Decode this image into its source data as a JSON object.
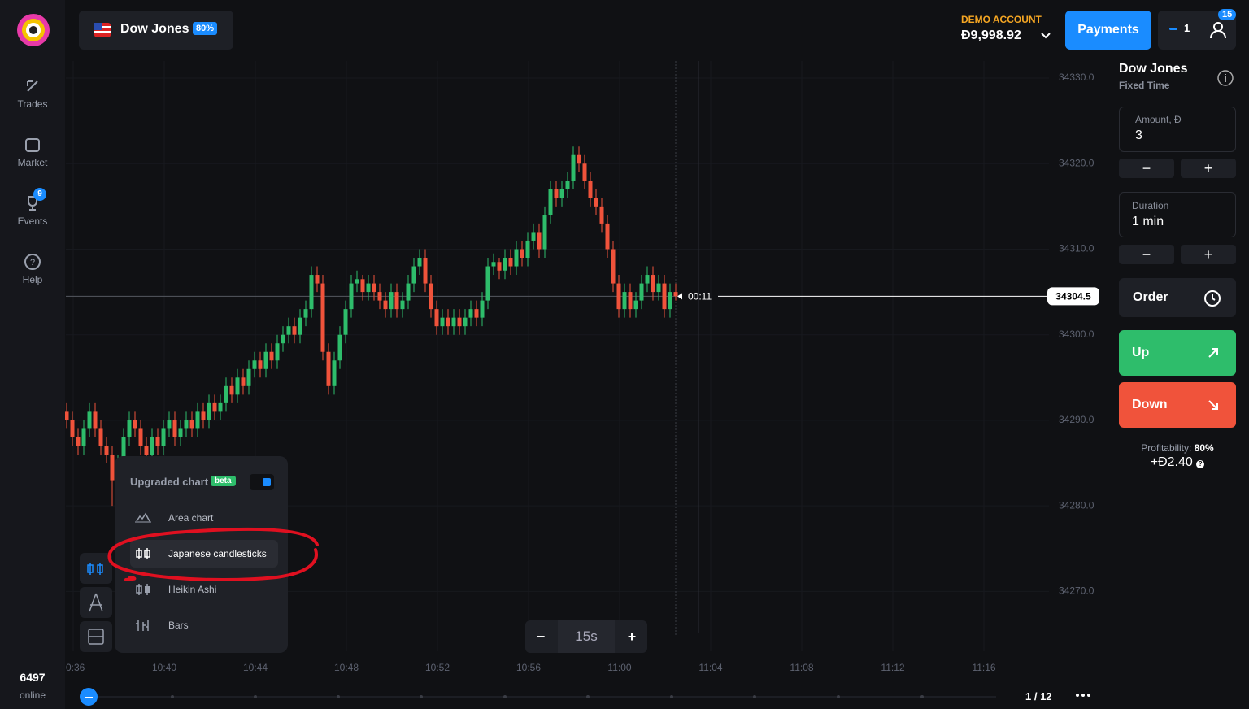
{
  "header": {
    "asset": "Dow Jones",
    "payout": "80%",
    "account_label": "DEMO ACCOUNT",
    "balance": "Đ9,998.92",
    "payments": "Payments",
    "trades_count": "1",
    "notifications": "15"
  },
  "sidebar": {
    "items": [
      {
        "label": "Trades"
      },
      {
        "label": "Market"
      },
      {
        "label": "Events",
        "badge": "9"
      },
      {
        "label": "Help"
      }
    ],
    "online_count": "6497",
    "online_label": "online"
  },
  "chart": {
    "type": "candlestick",
    "up_color": "#2ebd6b",
    "down_color": "#f0533b",
    "grid": true,
    "ylim": [
      34263,
      34332
    ],
    "yticks": [
      {
        "value": 34330,
        "label": "34330.0"
      },
      {
        "value": 34320,
        "label": "34320.0"
      },
      {
        "value": 34310,
        "label": "34310.0"
      },
      {
        "value": 34300,
        "label": "34300.0"
      },
      {
        "value": 34290,
        "label": "34290.0"
      },
      {
        "value": 34280,
        "label": "34280.0"
      },
      {
        "value": 34270,
        "label": "34270.0"
      }
    ],
    "x_labels": [
      "0:36",
      "10:40",
      "10:44",
      "10:48",
      "10:52",
      "10:56",
      "11:00",
      "11:04",
      "11:08",
      "11:12",
      "11:16"
    ],
    "current_price": 34304.5,
    "timer": "00:11",
    "candles": [
      [
        34291,
        34292,
        34289,
        34290
      ],
      [
        34290,
        34291,
        34287,
        34288
      ],
      [
        34288,
        34289,
        34286,
        34287
      ],
      [
        34287,
        34290,
        34286,
        34289
      ],
      [
        34289,
        34292,
        34288,
        34291
      ],
      [
        34291,
        34292,
        34288,
        34289
      ],
      [
        34289,
        34290,
        34286,
        34287
      ],
      [
        34287,
        34288,
        34285,
        34286
      ],
      [
        34286,
        34287,
        34280,
        34283
      ],
      [
        34283,
        34286,
        34282,
        34285
      ],
      [
        34285,
        34289,
        34284,
        34288
      ],
      [
        34288,
        34291,
        34287,
        34290
      ],
      [
        34290,
        34291,
        34288,
        34289
      ],
      [
        34289,
        34290,
        34286,
        34287
      ],
      [
        34287,
        34288,
        34285,
        34286
      ],
      [
        34286,
        34289,
        34285,
        34288
      ],
      [
        34288,
        34289,
        34286,
        34287
      ],
      [
        34287,
        34290,
        34286,
        34289
      ],
      [
        34289,
        34291,
        34288,
        34290
      ],
      [
        34290,
        34291,
        34287,
        34288
      ],
      [
        34288,
        34290,
        34287,
        34289
      ],
      [
        34289,
        34291,
        34288,
        34290
      ],
      [
        34290,
        34291,
        34288,
        34289
      ],
      [
        34289,
        34292,
        34288,
        34291
      ],
      [
        34291,
        34292,
        34289,
        34290
      ],
      [
        34290,
        34293,
        34289,
        34292
      ],
      [
        34292,
        34293,
        34290,
        34291
      ],
      [
        34291,
        34293,
        34290,
        34292
      ],
      [
        34292,
        34295,
        34291,
        34294
      ],
      [
        34294,
        34295,
        34292,
        34293
      ],
      [
        34293,
        34296,
        34292,
        34295
      ],
      [
        34295,
        34296,
        34293,
        34294
      ],
      [
        34294,
        34297,
        34293,
        34296
      ],
      [
        34296,
        34298,
        34295,
        34297
      ],
      [
        34297,
        34298,
        34295,
        34296
      ],
      [
        34296,
        34299,
        34295,
        34298
      ],
      [
        34298,
        34299,
        34296,
        34297
      ],
      [
        34297,
        34300,
        34296,
        34299
      ],
      [
        34299,
        34301,
        34298,
        34300
      ],
      [
        34300,
        34302,
        34299,
        34301
      ],
      [
        34301,
        34302,
        34299,
        34300
      ],
      [
        34300,
        34303,
        34299,
        34302
      ],
      [
        34302,
        34304,
        34301,
        34303
      ],
      [
        34303,
        34308,
        34302,
        34307
      ],
      [
        34307,
        34308,
        34305,
        34306
      ],
      [
        34306,
        34307,
        34297,
        34298
      ],
      [
        34298,
        34299,
        34293,
        34294
      ],
      [
        34294,
        34298,
        34293,
        34297
      ],
      [
        34297,
        34301,
        34296,
        34300
      ],
      [
        34300,
        34304,
        34299,
        34303
      ],
      [
        34303,
        34307,
        34302,
        34306
      ],
      [
        34306,
        34307.5,
        34305,
        34306.5
      ],
      [
        34306.5,
        34307,
        34304,
        34305
      ],
      [
        34305,
        34307,
        34304,
        34306
      ],
      [
        34306,
        34307,
        34304,
        34305
      ],
      [
        34305,
        34306,
        34303,
        34304
      ],
      [
        34304,
        34305,
        34302,
        34303
      ],
      [
        34303,
        34306,
        34302,
        34305
      ],
      [
        34305,
        34306,
        34302,
        34303
      ],
      [
        34303,
        34305,
        34302,
        34304
      ],
      [
        34304,
        34307,
        34303,
        34306
      ],
      [
        34306,
        34309,
        34305,
        34308
      ],
      [
        34308,
        34310,
        34307,
        34309
      ],
      [
        34309,
        34310,
        34305,
        34306
      ],
      [
        34306,
        34307,
        34302,
        34303
      ],
      [
        34303,
        34304,
        34300,
        34301
      ],
      [
        34301,
        34303,
        34300,
        34302
      ],
      [
        34302,
        34303,
        34300,
        34301
      ],
      [
        34301,
        34303,
        34300,
        34302
      ],
      [
        34302,
        34303,
        34300,
        34301
      ],
      [
        34301,
        34303,
        34300,
        34302
      ],
      [
        34302,
        34304,
        34301,
        34303
      ],
      [
        34303,
        34304,
        34301,
        34302
      ],
      [
        34302,
        34305,
        34301,
        34304
      ],
      [
        34304,
        34309,
        34303,
        34308
      ],
      [
        34308,
        34309.5,
        34307,
        34308.5
      ],
      [
        34308.5,
        34309,
        34306.5,
        34307.5
      ],
      [
        34307.5,
        34310,
        34306.5,
        34309
      ],
      [
        34309,
        34310,
        34307,
        34308
      ],
      [
        34308,
        34311,
        34307,
        34310
      ],
      [
        34310,
        34311,
        34308,
        34309
      ],
      [
        34309,
        34312,
        34308,
        34311
      ],
      [
        34311,
        34313,
        34310,
        34312
      ],
      [
        34312,
        34313,
        34309,
        34310
      ],
      [
        34310,
        34315,
        34309,
        34314
      ],
      [
        34314,
        34318,
        34313,
        34317
      ],
      [
        34317,
        34318,
        34315,
        34316
      ],
      [
        34316,
        34318,
        34315,
        34317
      ],
      [
        34317,
        34319,
        34316,
        34318
      ],
      [
        34318,
        34322,
        34317,
        34321
      ],
      [
        34321,
        34322,
        34319,
        34320
      ],
      [
        34320,
        34321,
        34317,
        34318
      ],
      [
        34318,
        34319,
        34315,
        34316
      ],
      [
        34316,
        34317,
        34314,
        34315
      ],
      [
        34315,
        34316,
        34312,
        34313
      ],
      [
        34313,
        34314,
        34309,
        34310
      ],
      [
        34310,
        34311,
        34305,
        34306
      ],
      [
        34306,
        34307,
        34302,
        34303
      ],
      [
        34303,
        34306,
        34302,
        34305
      ],
      [
        34305,
        34306,
        34302,
        34303
      ],
      [
        34303,
        34305,
        34302,
        34304
      ],
      [
        34304,
        34307,
        34303,
        34306
      ],
      [
        34306,
        34308,
        34305,
        34307
      ],
      [
        34307,
        34308,
        34304,
        34305
      ],
      [
        34305,
        34307,
        34304,
        34306
      ],
      [
        34306,
        34307,
        34302,
        34303
      ],
      [
        34303,
        34306,
        34302,
        34305
      ],
      [
        34305,
        34306,
        34304,
        34304.5
      ]
    ]
  },
  "chart_menu": {
    "title": "Upgraded chart",
    "badge": "beta",
    "items": [
      "Area chart",
      "Japanese candlesticks",
      "Heikin Ashi",
      "Bars"
    ],
    "selected": 1
  },
  "zoom": {
    "minus": "−",
    "interval": "15s",
    "plus": "+"
  },
  "trade_panel": {
    "asset": "Dow Jones",
    "mode": "Fixed Time",
    "amount_label": "Amount, Đ",
    "amount": "3",
    "duration_label": "Duration",
    "duration": "1 min",
    "minus": "−",
    "plus": "+",
    "order": "Order",
    "up": "Up",
    "down": "Down",
    "profitability_label": "Profitability:",
    "profitability": "80%",
    "profit": "+Đ2.40"
  },
  "timeline": {
    "page": "1 / 12"
  }
}
